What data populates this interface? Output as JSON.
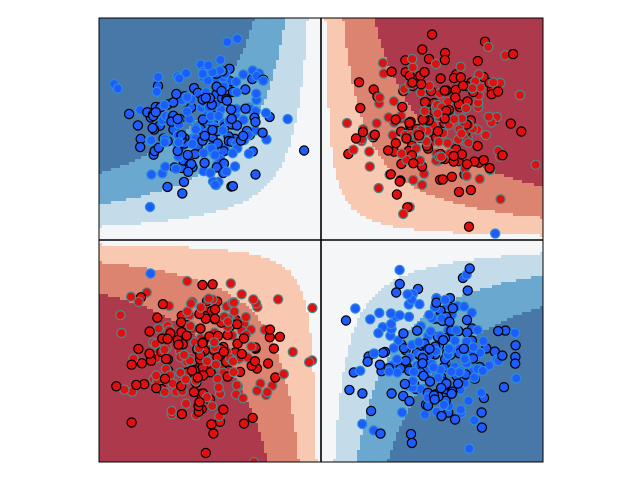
{
  "chart_data": {
    "type": "scatter",
    "title": "",
    "xlabel": "",
    "ylabel": "",
    "xlim": [
      -1.0,
      1.0
    ],
    "ylim": [
      -1.0,
      1.0
    ],
    "axes_visible": false,
    "grid": false,
    "legend": "none",
    "reference_lines": {
      "x": 0,
      "y": 0,
      "color": "#000000"
    },
    "background": {
      "kind": "filled-contour",
      "colormap": "RdBu_r",
      "decision_function": "sign(x*y)",
      "levels": [
        {
          "max": -0.3,
          "color": "#4878a8"
        },
        {
          "max": -0.16,
          "color": "#6aa8d0"
        },
        {
          "max": -0.06,
          "color": "#c4dcea"
        },
        {
          "max": 0.02,
          "color": "#f4f6f7"
        },
        {
          "max": 0.1,
          "color": "#f8c8b0"
        },
        {
          "max": 0.24,
          "color": "#dd8470"
        },
        {
          "max": 10,
          "color": "#ac3a4c"
        }
      ]
    },
    "clusters": [
      {
        "class": "blue",
        "center": [
          -0.52,
          0.52
        ],
        "n": 240
      },
      {
        "class": "red",
        "center": [
          0.52,
          0.52
        ],
        "n": 240
      },
      {
        "class": "red",
        "center": [
          -0.52,
          -0.52
        ],
        "n": 240
      },
      {
        "class": "blue",
        "center": [
          0.52,
          -0.52
        ],
        "n": 240
      }
    ],
    "series": [
      {
        "class": "blue",
        "fill": "#1f5cff",
        "edge_colors": [
          "#000000",
          "#2a8fd8"
        ]
      },
      {
        "class": "red",
        "fill": "#e01010",
        "edge_colors": [
          "#000000",
          "#4a8a8a"
        ]
      }
    ]
  }
}
